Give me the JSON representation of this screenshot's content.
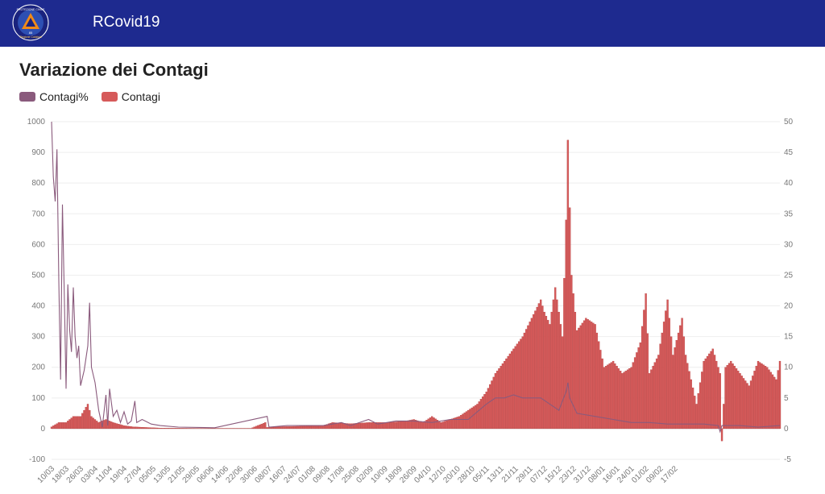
{
  "header": {
    "app_title": "RCovid19",
    "logo_text": "PROTEZIONE CIVILE",
    "logo_subtext": "Regione Calabria",
    "logo_number": "85",
    "background": "#1e2a8f"
  },
  "page": {
    "title": "Variazione dei Contagi"
  },
  "legend": [
    {
      "label": "Contagi%",
      "color": "#8a5a7c"
    },
    {
      "label": "Contagi",
      "color": "#d65a5a"
    }
  ],
  "chart_data": {
    "type": "bar+line",
    "title": "Variazione dei Contagi",
    "left_axis": {
      "min": -100,
      "max": 1000,
      "ticks": [
        -100,
        0,
        100,
        200,
        300,
        400,
        500,
        600,
        700,
        800,
        900,
        1000
      ],
      "series": "Contagi%"
    },
    "right_axis": {
      "min": -5,
      "max": 50,
      "ticks": [
        -5,
        0,
        5,
        10,
        15,
        20,
        25,
        30,
        35,
        40,
        45,
        50
      ],
      "series": "Contagi"
    },
    "grid": true,
    "legend_position": "top-left",
    "x_tick_labels": [
      "10/03",
      "18/03",
      "26/03",
      "03/04",
      "11/04",
      "19/04",
      "27/04",
      "05/05",
      "13/05",
      "21/05",
      "29/05",
      "06/06",
      "14/06",
      "22/06",
      "30/06",
      "08/07",
      "16/07",
      "24/07",
      "01/08",
      "09/08",
      "17/08",
      "25/08",
      "02/09",
      "10/09",
      "18/09",
      "26/09",
      "04/10",
      "12/10",
      "20/10",
      "28/10",
      "05/11",
      "13/11",
      "21/11",
      "29/11",
      "07/12",
      "15/12",
      "23/12",
      "31/12",
      "08/01",
      "16/01",
      "24/01",
      "01/02",
      "09/02",
      "17/02"
    ],
    "days_per_tick": 8,
    "series": [
      {
        "name": "Contagi",
        "type": "bar",
        "axis": "right",
        "color": "#d65a5a",
        "anchors": [
          [
            0,
            0.3
          ],
          [
            4,
            1
          ],
          [
            8,
            1
          ],
          [
            12,
            2
          ],
          [
            16,
            2
          ],
          [
            20,
            4
          ],
          [
            22,
            2
          ],
          [
            26,
            1
          ],
          [
            30,
            1.5
          ],
          [
            34,
            1
          ],
          [
            40,
            0.5
          ],
          [
            45,
            0.3
          ],
          [
            52,
            0.2
          ],
          [
            60,
            0.1
          ],
          [
            80,
            0.05
          ],
          [
            110,
            0.05
          ],
          [
            118,
            1
          ],
          [
            119,
            0.2
          ],
          [
            125,
            0.3
          ],
          [
            150,
            0.5
          ],
          [
            155,
            1
          ],
          [
            165,
            0.8
          ],
          [
            175,
            1
          ],
          [
            185,
            1
          ],
          [
            195,
            1.2
          ],
          [
            200,
            1.5
          ],
          [
            205,
            1
          ],
          [
            210,
            2
          ],
          [
            215,
            1
          ],
          [
            220,
            1.5
          ],
          [
            225,
            2
          ],
          [
            230,
            3
          ],
          [
            235,
            4
          ],
          [
            240,
            6
          ],
          [
            245,
            9
          ],
          [
            250,
            11
          ],
          [
            255,
            13
          ],
          [
            260,
            15
          ],
          [
            265,
            18
          ],
          [
            270,
            21
          ],
          [
            272,
            19
          ],
          [
            275,
            17
          ],
          [
            278,
            23
          ],
          [
            282,
            15
          ],
          [
            284,
            34
          ],
          [
            285,
            47
          ],
          [
            287,
            25
          ],
          [
            290,
            16
          ],
          [
            295,
            18
          ],
          [
            300,
            17
          ],
          [
            305,
            10
          ],
          [
            310,
            11
          ],
          [
            315,
            9
          ],
          [
            320,
            10
          ],
          [
            325,
            14
          ],
          [
            328,
            22
          ],
          [
            330,
            9
          ],
          [
            335,
            12
          ],
          [
            340,
            21
          ],
          [
            343,
            12
          ],
          [
            348,
            18
          ],
          [
            350,
            12
          ],
          [
            356,
            4
          ],
          [
            360,
            11
          ],
          [
            365,
            13
          ],
          [
            369,
            9
          ],
          [
            370,
            -2
          ],
          [
            372,
            10
          ],
          [
            375,
            11
          ],
          [
            380,
            9
          ],
          [
            385,
            7
          ],
          [
            390,
            11
          ],
          [
            395,
            10
          ],
          [
            400,
            8
          ],
          [
            402,
            11
          ]
        ]
      },
      {
        "name": "Contagi%",
        "type": "line",
        "axis": "left",
        "color": "#8a5a7c",
        "anchors": [
          [
            0,
            1000
          ],
          [
            1,
            820
          ],
          [
            2,
            740
          ],
          [
            3,
            910
          ],
          [
            4,
            480
          ],
          [
            5,
            160
          ],
          [
            6,
            730
          ],
          [
            7,
            450
          ],
          [
            8,
            130
          ],
          [
            9,
            470
          ],
          [
            10,
            320
          ],
          [
            11,
            250
          ],
          [
            12,
            460
          ],
          [
            13,
            300
          ],
          [
            14,
            230
          ],
          [
            15,
            270
          ],
          [
            16,
            140
          ],
          [
            18,
            190
          ],
          [
            20,
            270
          ],
          [
            21,
            410
          ],
          [
            22,
            200
          ],
          [
            24,
            150
          ],
          [
            26,
            60
          ],
          [
            28,
            5
          ],
          [
            30,
            110
          ],
          [
            31,
            10
          ],
          [
            32,
            130
          ],
          [
            34,
            40
          ],
          [
            36,
            60
          ],
          [
            38,
            20
          ],
          [
            40,
            55
          ],
          [
            42,
            15
          ],
          [
            44,
            25
          ],
          [
            46,
            90
          ],
          [
            47,
            20
          ],
          [
            50,
            30
          ],
          [
            55,
            15
          ],
          [
            60,
            10
          ],
          [
            70,
            5
          ],
          [
            90,
            3
          ],
          [
            119,
            40
          ],
          [
            120,
            5
          ],
          [
            130,
            10
          ],
          [
            150,
            10
          ],
          [
            160,
            20
          ],
          [
            165,
            10
          ],
          [
            175,
            30
          ],
          [
            180,
            15
          ],
          [
            190,
            25
          ],
          [
            200,
            25
          ],
          [
            210,
            20
          ],
          [
            220,
            30
          ],
          [
            230,
            30
          ],
          [
            236,
            60
          ],
          [
            240,
            80
          ],
          [
            245,
            100
          ],
          [
            250,
            100
          ],
          [
            255,
            110
          ],
          [
            260,
            100
          ],
          [
            265,
            100
          ],
          [
            270,
            100
          ],
          [
            275,
            80
          ],
          [
            280,
            60
          ],
          [
            284,
            120
          ],
          [
            285,
            150
          ],
          [
            286,
            100
          ],
          [
            290,
            50
          ],
          [
            300,
            40
          ],
          [
            310,
            30
          ],
          [
            320,
            20
          ],
          [
            330,
            20
          ],
          [
            340,
            15
          ],
          [
            350,
            15
          ],
          [
            360,
            15
          ],
          [
            368,
            10
          ],
          [
            369,
            -10
          ],
          [
            370,
            10
          ],
          [
            380,
            10
          ],
          [
            390,
            5
          ],
          [
            402,
            10
          ]
        ]
      }
    ]
  }
}
